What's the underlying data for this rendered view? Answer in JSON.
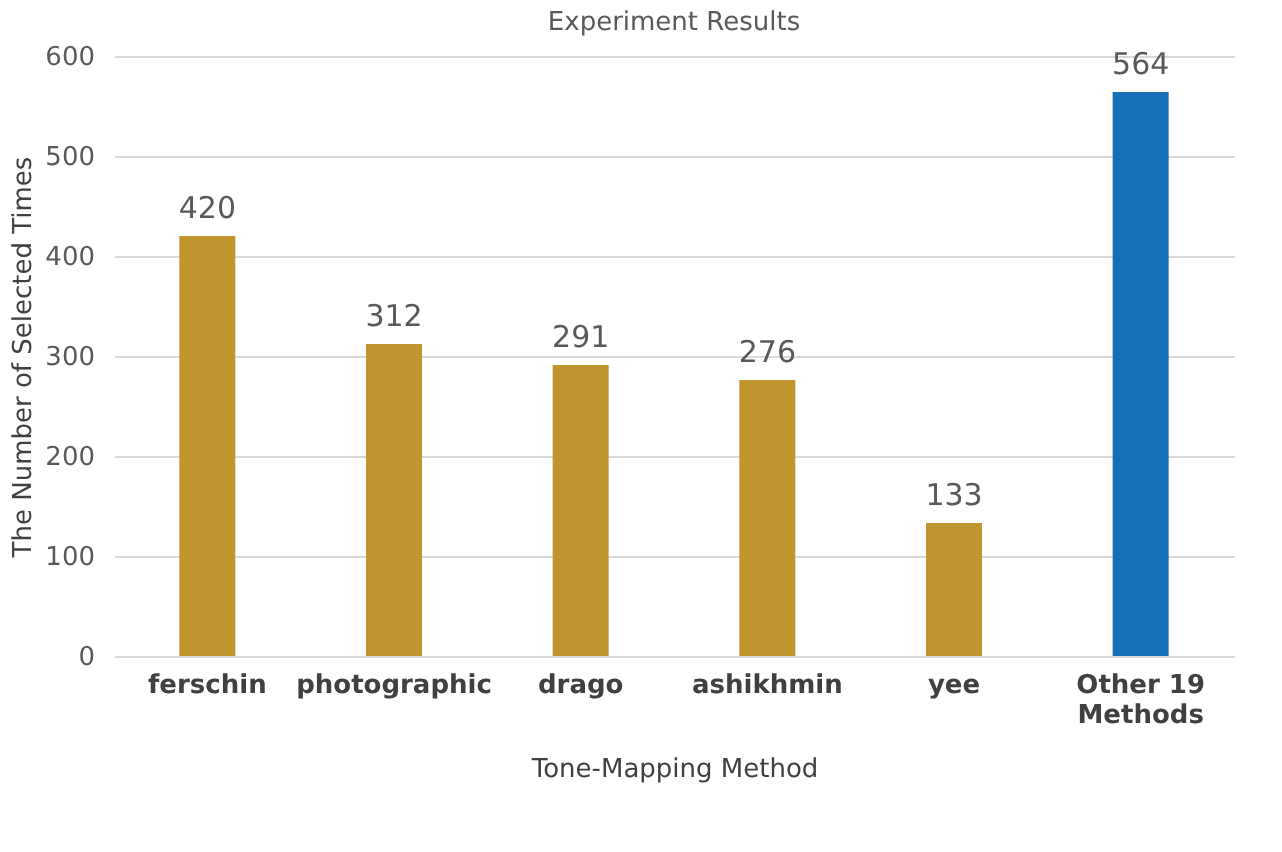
{
  "chart_data": {
    "type": "bar",
    "title": "Experiment Results",
    "xlabel": "Tone-Mapping Method",
    "ylabel": "The Number of Selected Times",
    "categories": [
      "ferschin",
      "photographic",
      "drago",
      "ashikhmin",
      "yee",
      "Other 19 Methods"
    ],
    "values": [
      420,
      312,
      291,
      276,
      133,
      564
    ],
    "colors": [
      "#c0952e",
      "#c0952e",
      "#c0952e",
      "#c0952e",
      "#c0952e",
      "#1570b8"
    ],
    "ylim": [
      0,
      600
    ],
    "yticks": [
      0,
      100,
      200,
      300,
      400,
      500,
      600
    ],
    "grid": "y",
    "data_labels": true
  }
}
